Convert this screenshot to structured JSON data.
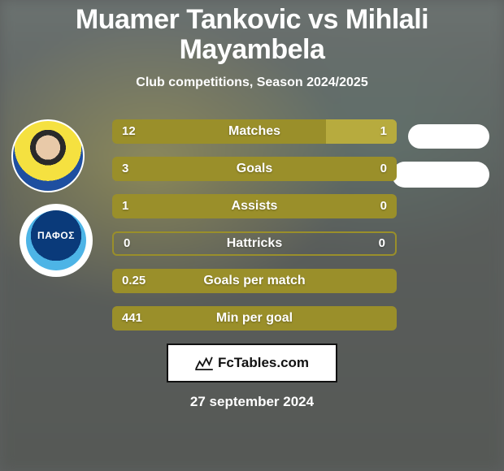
{
  "title_left": "Muamer Tankovic",
  "title_mid": "vs",
  "title_right": "Mihlali Mayambela",
  "subtitle": "Club competitions, Season 2024/2025",
  "club_label": "ΠΑΦΟΣ",
  "colors": {
    "olive_dark": "#9a8f2a",
    "olive_light": "#b7ab3e",
    "row_border": "#9a8f2a",
    "badge_bg": "#ffffff",
    "text": "#ffffff",
    "card_bg": "#ffffff",
    "card_border": "#111111"
  },
  "rows": [
    {
      "label": "Matches",
      "left": "12",
      "right": "1",
      "left_width_pct": 75,
      "right_width_pct": 25,
      "right_is_light": true
    },
    {
      "label": "Goals",
      "left": "3",
      "right": "0",
      "left_width_pct": 100,
      "right_width_pct": 0,
      "right_is_light": false
    },
    {
      "label": "Assists",
      "left": "1",
      "right": "0",
      "left_width_pct": 100,
      "right_width_pct": 0,
      "right_is_light": false
    },
    {
      "label": "Hattricks",
      "left": "0",
      "right": "0",
      "left_width_pct": 0,
      "right_width_pct": 0,
      "right_is_light": false,
      "empty": true
    },
    {
      "label": "Goals per match",
      "left": "0.25",
      "right": "",
      "left_width_pct": 100,
      "right_width_pct": 0,
      "right_is_light": false
    },
    {
      "label": "Min per goal",
      "left": "441",
      "right": "",
      "left_width_pct": 100,
      "right_width_pct": 0,
      "right_is_light": false
    }
  ],
  "footer_brand": "FcTables.com",
  "date": "27 september 2024"
}
